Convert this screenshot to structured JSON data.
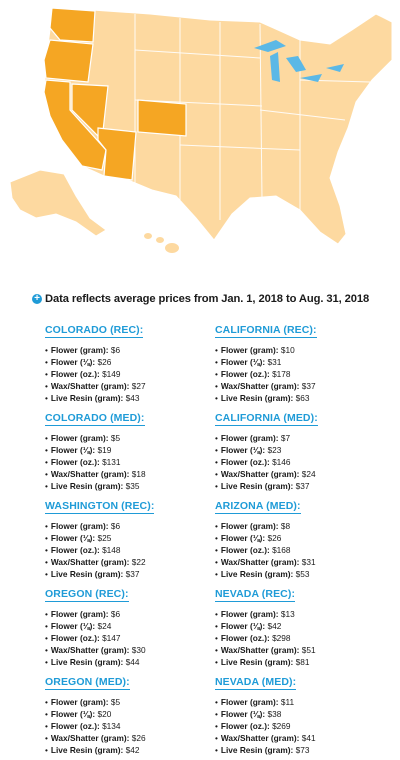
{
  "map": {
    "highlight_color": "#f5a623",
    "base_color": "#fdd9a0",
    "water_color": "#5bb8e6",
    "highlighted_states": [
      "Washington",
      "Oregon",
      "California",
      "Nevada",
      "Arizona",
      "Colorado"
    ]
  },
  "headline": {
    "icon": "plus-circle-icon",
    "text": "Data reflects average prices from Jan. 1, 2018 to Aug. 31, 2018"
  },
  "left_column": [
    {
      "title": "COLORADO (REC):",
      "items": [
        {
          "label": "Flower (gram):",
          "value": " $6"
        },
        {
          "label": "Flower (⅛):",
          "value": " $26"
        },
        {
          "label": "Flower (oz.):",
          "value": " $149"
        },
        {
          "label": "Wax/Shatter (gram):",
          "value": " $27"
        },
        {
          "label": "Live Resin (gram):",
          "value": " $43"
        }
      ]
    },
    {
      "title": "COLORADO (MED):",
      "items": [
        {
          "label": "Flower (gram):",
          "value": " $5"
        },
        {
          "label": "Flower (⅛):",
          "value": " $19"
        },
        {
          "label": "Flower (oz.):",
          "value": " $131"
        },
        {
          "label": "Wax/Shatter (gram):",
          "value": " $18"
        },
        {
          "label": "Live Resin (gram):",
          "value": " $35"
        }
      ]
    },
    {
      "title": "WASHINGTON (REC):",
      "items": [
        {
          "label": "Flower (gram):",
          "value": " $6"
        },
        {
          "label": "Flower (⅛):",
          "value": " $25"
        },
        {
          "label": "Flower (oz.):",
          "value": " $148"
        },
        {
          "label": "Wax/Shatter (gram):",
          "value": " $22"
        },
        {
          "label": "Live Resin (gram):",
          "value": " $37"
        }
      ]
    },
    {
      "title": "OREGON (REC):",
      "items": [
        {
          "label": "Flower (gram):",
          "value": " $6"
        },
        {
          "label": "Flower (⅛):",
          "value": " $24"
        },
        {
          "label": "Flower (oz.):",
          "value": " $147"
        },
        {
          "label": "Wax/Shatter (gram):",
          "value": " $30"
        },
        {
          "label": "Live Resin (gram):",
          "value": " $44"
        }
      ]
    },
    {
      "title": "OREGON (MED):",
      "items": [
        {
          "label": "Flower (gram):",
          "value": " $5"
        },
        {
          "label": "Flower (⅛):",
          "value": " $20"
        },
        {
          "label": "Flower (oz.):",
          "value": " $134"
        },
        {
          "label": "Wax/Shatter (gram):",
          "value": " $26"
        },
        {
          "label": "Live Resin (gram):",
          "value": " $42"
        }
      ]
    }
  ],
  "right_column": [
    {
      "title": "CALIFORNIA (REC):",
      "items": [
        {
          "label": "Flower (gram):",
          "value": " $10"
        },
        {
          "label": "Flower (⅛):",
          "value": " $31"
        },
        {
          "label": "Flower (oz.):",
          "value": " $178"
        },
        {
          "label": "Wax/Shatter (gram):",
          "value": " $37"
        },
        {
          "label": "Live Resin (gram):",
          "value": " $63"
        }
      ]
    },
    {
      "title": "CALIFORNIA (MED):",
      "items": [
        {
          "label": "Flower (gram):",
          "value": " $7"
        },
        {
          "label": "Flower (⅛):",
          "value": " $23"
        },
        {
          "label": "Flower (oz.):",
          "value": " $146"
        },
        {
          "label": "Wax/Shatter (gram):",
          "value": " $24"
        },
        {
          "label": "Live Resin (gram):",
          "value": " $37"
        }
      ]
    },
    {
      "title": "ARIZONA (MED):",
      "items": [
        {
          "label": "Flower (gram):",
          "value": " $8"
        },
        {
          "label": "Flower (⅛):",
          "value": " $26"
        },
        {
          "label": "Flower (oz.):",
          "value": " $168"
        },
        {
          "label": "Wax/Shatter (gram):",
          "value": " $31"
        },
        {
          "label": "Live Resin (gram):",
          "value": " $53"
        }
      ]
    },
    {
      "title": "NEVADA (REC):",
      "items": [
        {
          "label": "Flower (gram):",
          "value": " $13"
        },
        {
          "label": "Flower (⅛):",
          "value": " $42"
        },
        {
          "label": "Flower (oz.):",
          "value": " $298"
        },
        {
          "label": "Wax/Shatter (gram):",
          "value": " $51"
        },
        {
          "label": "Live Resin (gram):",
          "value": " $81"
        }
      ]
    },
    {
      "title": "NEVADA (MED):",
      "items": [
        {
          "label": "Flower (gram):",
          "value": " $11"
        },
        {
          "label": "Flower (⅛):",
          "value": " $38"
        },
        {
          "label": "Flower (oz.):",
          "value": " $269"
        },
        {
          "label": "Wax/Shatter (gram):",
          "value": " $41"
        },
        {
          "label": "Live Resin (gram):",
          "value": " $73"
        }
      ]
    }
  ]
}
